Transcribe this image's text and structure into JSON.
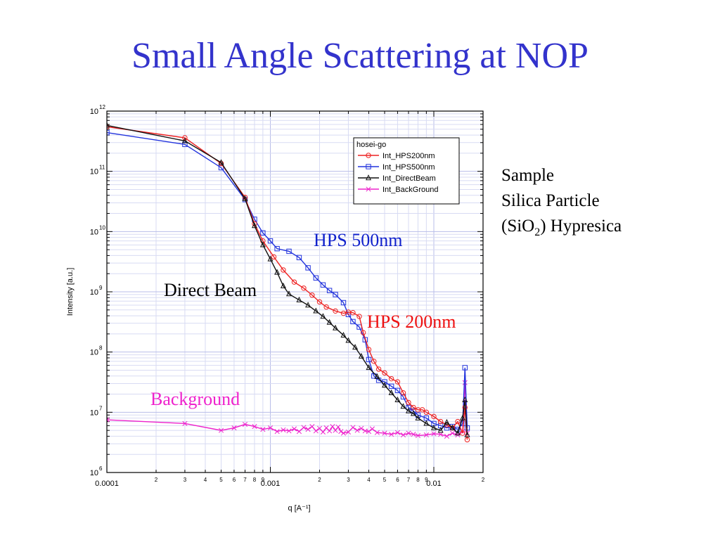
{
  "slide": {
    "title": "Small Angle Scattering at NOP",
    "sample_heading": "Sample",
    "sample_line1": "Silica  Particle",
    "sample_line2_pre": "(SiO",
    "sample_line2_sub": "2",
    "sample_line2_post": ")  Hypresica"
  },
  "chart_data": {
    "type": "line",
    "title": "",
    "xlabel": "q [A⁻¹]",
    "ylabel": "Intensity [a.u.]",
    "xscale": "log",
    "yscale": "log",
    "xlim": [
      0.0001,
      0.02
    ],
    "ylim": [
      1000000,
      1000000000000
    ],
    "grid": true,
    "legend": {
      "title": "hosei-go",
      "placement": "top-right"
    },
    "x_tick_labels": [
      {
        "value": 0.0001,
        "label": "0.0001",
        "major": true
      },
      {
        "value": 0.0002,
        "label": "2"
      },
      {
        "value": 0.0003,
        "label": "3"
      },
      {
        "value": 0.0004,
        "label": "4"
      },
      {
        "value": 0.0005,
        "label": "5"
      },
      {
        "value": 0.0006,
        "label": "6"
      },
      {
        "value": 0.0007,
        "label": "7"
      },
      {
        "value": 0.0008,
        "label": "8"
      },
      {
        "value": 0.0009,
        "label": "9"
      },
      {
        "value": 0.001,
        "label": "0.001",
        "major": true
      },
      {
        "value": 0.002,
        "label": "2"
      },
      {
        "value": 0.003,
        "label": "3"
      },
      {
        "value": 0.004,
        "label": "4"
      },
      {
        "value": 0.005,
        "label": "5"
      },
      {
        "value": 0.006,
        "label": "6"
      },
      {
        "value": 0.007,
        "label": "7"
      },
      {
        "value": 0.008,
        "label": "8"
      },
      {
        "value": 0.009,
        "label": "9"
      },
      {
        "value": 0.01,
        "label": "0.01",
        "major": true
      },
      {
        "value": 0.02,
        "label": "2"
      }
    ],
    "y_tick_labels": [
      {
        "value": 1000000,
        "mantissa": "10",
        "exp": "6"
      },
      {
        "value": 10000000,
        "mantissa": "10",
        "exp": "7"
      },
      {
        "value": 100000000,
        "mantissa": "10",
        "exp": "8"
      },
      {
        "value": 1000000000,
        "mantissa": "10",
        "exp": "9"
      },
      {
        "value": 10000000000,
        "mantissa": "10",
        "exp": "10"
      },
      {
        "value": 100000000000,
        "mantissa": "10",
        "exp": "11"
      },
      {
        "value": 1000000000000,
        "mantissa": "10",
        "exp": "12"
      }
    ],
    "series": [
      {
        "name": "Int_HPS200nm",
        "color": "#ee2222",
        "marker": "circle",
        "points": [
          [
            0.0001,
            550000000000.0
          ],
          [
            0.0003,
            360000000000.0
          ],
          [
            0.0005,
            135000000000.0
          ],
          [
            0.0007,
            37000000000.0
          ],
          [
            0.0008,
            13500000000.0
          ],
          [
            0.0009,
            7000000000.0
          ],
          [
            0.00105,
            3800000000.0
          ],
          [
            0.0012,
            2300000000.0
          ],
          [
            0.0014,
            1450000000.0
          ],
          [
            0.0016,
            1150000000.0
          ],
          [
            0.0018,
            880000000.0
          ],
          [
            0.002,
            680000000.0
          ],
          [
            0.0022,
            560000000.0
          ],
          [
            0.0025,
            480000000.0
          ],
          [
            0.0028,
            440000000.0
          ],
          [
            0.003,
            460000000.0
          ],
          [
            0.0032,
            450000000.0
          ],
          [
            0.0035,
            390000000.0
          ],
          [
            0.0037,
            210000000.0
          ],
          [
            0.004,
            110000000.0
          ],
          [
            0.0043,
            70000000.0
          ],
          [
            0.0046,
            52000000.0
          ],
          [
            0.005,
            45000000.0
          ],
          [
            0.0055,
            36000000.0
          ],
          [
            0.006,
            32000000.0
          ],
          [
            0.0065,
            21000000.0
          ],
          [
            0.007,
            14500000.0
          ],
          [
            0.0075,
            12000000.0
          ],
          [
            0.008,
            11000000.0
          ],
          [
            0.0085,
            11000000.0
          ],
          [
            0.009,
            10000000.0
          ],
          [
            0.01,
            8500000.0
          ],
          [
            0.011,
            7000000.0
          ],
          [
            0.012,
            6200000.0
          ],
          [
            0.013,
            5500000.0
          ],
          [
            0.014,
            7000000.0
          ],
          [
            0.015,
            4500000.0
          ],
          [
            0.0155,
            12000000.0
          ],
          [
            0.016,
            3500000.0
          ]
        ]
      },
      {
        "name": "Int_HPS500nm",
        "color": "#2233dd",
        "marker": "square",
        "points": [
          [
            0.0001,
            440000000000.0
          ],
          [
            0.0003,
            280000000000.0
          ],
          [
            0.0005,
            115000000000.0
          ],
          [
            0.0007,
            34000000000.0
          ],
          [
            0.0008,
            16000000000.0
          ],
          [
            0.0009,
            9500000000.0
          ],
          [
            0.001,
            7000000000.0
          ],
          [
            0.0011,
            5200000000.0
          ],
          [
            0.0013,
            4700000000.0
          ],
          [
            0.0015,
            3700000000.0
          ],
          [
            0.0017,
            2500000000.0
          ],
          [
            0.0019,
            1700000000.0
          ],
          [
            0.0021,
            1300000000.0
          ],
          [
            0.0023,
            1050000000.0
          ],
          [
            0.0025,
            900000000.0
          ],
          [
            0.0028,
            660000000.0
          ],
          [
            0.003,
            420000000.0
          ],
          [
            0.0032,
            320000000.0
          ],
          [
            0.0035,
            260000000.0
          ],
          [
            0.0038,
            160000000.0
          ],
          [
            0.004,
            75000000.0
          ],
          [
            0.0043,
            40000000.0
          ],
          [
            0.0046,
            34000000.0
          ],
          [
            0.005,
            32000000.0
          ],
          [
            0.0055,
            27000000.0
          ],
          [
            0.006,
            23000000.0
          ],
          [
            0.0065,
            18000000.0
          ],
          [
            0.007,
            12000000.0
          ],
          [
            0.0075,
            10500000.0
          ],
          [
            0.008,
            9000000.0
          ],
          [
            0.009,
            8000000.0
          ],
          [
            0.01,
            6500000.0
          ],
          [
            0.011,
            6000000.0
          ],
          [
            0.012,
            5500000.0
          ],
          [
            0.013,
            5800000.0
          ],
          [
            0.014,
            5200000.0
          ],
          [
            0.015,
            6500000.0
          ],
          [
            0.0155,
            55000000.0
          ],
          [
            0.016,
            5500000.0
          ]
        ]
      },
      {
        "name": "Int_DirectBeam",
        "color": "#111111",
        "marker": "triangle",
        "points": [
          [
            0.0001,
            580000000000.0
          ],
          [
            0.0003,
            320000000000.0
          ],
          [
            0.0005,
            140000000000.0
          ],
          [
            0.0007,
            35000000000.0
          ],
          [
            0.0008,
            12500000000.0
          ],
          [
            0.0009,
            6000000000.0
          ],
          [
            0.001,
            3500000000.0
          ],
          [
            0.0011,
            2100000000.0
          ],
          [
            0.0012,
            1250000000.0
          ],
          [
            0.0013,
            920000000.0
          ],
          [
            0.0015,
            730000000.0
          ],
          [
            0.0017,
            600000000.0
          ],
          [
            0.0019,
            480000000.0
          ],
          [
            0.0021,
            390000000.0
          ],
          [
            0.0023,
            310000000.0
          ],
          [
            0.0025,
            250000000.0
          ],
          [
            0.0028,
            190000000.0
          ],
          [
            0.003,
            155000000.0
          ],
          [
            0.0033,
            120000000.0
          ],
          [
            0.0036,
            85000000.0
          ],
          [
            0.004,
            55000000.0
          ],
          [
            0.0045,
            39000000.0
          ],
          [
            0.005,
            28000000.0
          ],
          [
            0.0055,
            21000000.0
          ],
          [
            0.006,
            16000000.0
          ],
          [
            0.0065,
            12500000.0
          ],
          [
            0.007,
            10500000.0
          ],
          [
            0.0075,
            9500000.0
          ],
          [
            0.008,
            8000000.0
          ],
          [
            0.009,
            6500000.0
          ],
          [
            0.01,
            5500000.0
          ],
          [
            0.011,
            5000000.0
          ],
          [
            0.012,
            6800000.0
          ],
          [
            0.013,
            5500000.0
          ],
          [
            0.014,
            4500000.0
          ],
          [
            0.015,
            8000000.0
          ],
          [
            0.0155,
            16000000.0
          ],
          [
            0.016,
            4200000.0
          ]
        ]
      },
      {
        "name": "Int_BackGround",
        "color": "#ee22cc",
        "marker": "x",
        "points": [
          [
            0.0001,
            7500000.0
          ],
          [
            0.0003,
            6500000.0
          ],
          [
            0.0005,
            5000000.0
          ],
          [
            0.0006,
            5500000.0
          ],
          [
            0.0007,
            6300000.0
          ],
          [
            0.0008,
            5800000.0
          ],
          [
            0.0009,
            5200000.0
          ],
          [
            0.001,
            5500000.0
          ],
          [
            0.0011,
            4800000.0
          ],
          [
            0.0012,
            5100000.0
          ],
          [
            0.0013,
            4900000.0
          ],
          [
            0.0014,
            5300000.0
          ],
          [
            0.0015,
            4800000.0
          ],
          [
            0.0016,
            5600000.0
          ],
          [
            0.0017,
            5200000.0
          ],
          [
            0.0018,
            5800000.0
          ],
          [
            0.0019,
            4900000.0
          ],
          [
            0.002,
            5400000.0
          ],
          [
            0.0021,
            4700000.0
          ],
          [
            0.0022,
            5500000.0
          ],
          [
            0.0023,
            4900000.0
          ],
          [
            0.0024,
            5800000.0
          ],
          [
            0.0025,
            5000000.0
          ],
          [
            0.0026,
            5700000.0
          ],
          [
            0.0027,
            4800000.0
          ],
          [
            0.0028,
            4500000.0
          ],
          [
            0.003,
            4700000.0
          ],
          [
            0.0032,
            5600000.0
          ],
          [
            0.0034,
            5000000.0
          ],
          [
            0.0036,
            5400000.0
          ],
          [
            0.0038,
            4900000.0
          ],
          [
            0.004,
            4800000.0
          ],
          [
            0.0042,
            5300000.0
          ],
          [
            0.0045,
            4600000.0
          ],
          [
            0.005,
            4500000.0
          ],
          [
            0.0055,
            4300000.0
          ],
          [
            0.006,
            4600000.0
          ],
          [
            0.0065,
            4200000.0
          ],
          [
            0.007,
            4500000.0
          ],
          [
            0.0075,
            4300000.0
          ],
          [
            0.008,
            4100000.0
          ],
          [
            0.009,
            4200000.0
          ],
          [
            0.01,
            4400000.0
          ],
          [
            0.011,
            4300000.0
          ],
          [
            0.012,
            4000000.0
          ],
          [
            0.013,
            4500000.0
          ],
          [
            0.014,
            4200000.0
          ],
          [
            0.015,
            4800000.0
          ],
          [
            0.0155,
            31000000.0
          ],
          [
            0.016,
            4500000.0
          ]
        ]
      }
    ],
    "annotations": [
      {
        "text": "HPS 500nm",
        "color": "#1122cc"
      },
      {
        "text": "Direct Beam",
        "color": "#000000"
      },
      {
        "text": "HPS 200nm",
        "color": "#ee1111"
      },
      {
        "text": "Background",
        "color": "#ee22cc"
      }
    ]
  }
}
